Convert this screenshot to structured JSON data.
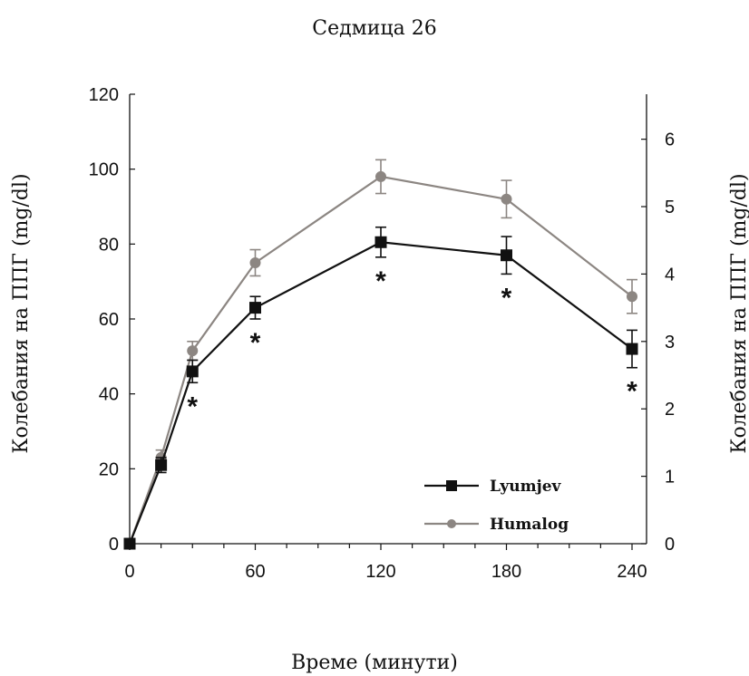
{
  "chart_data": {
    "type": "line",
    "title": "Седмица 26",
    "xlabel": "Време (минути)",
    "ylabel_left": "Колебания на ППГ (mg/dl)",
    "ylabel_right": "Колебания на ППГ (mg/dl)",
    "x": [
      0,
      15,
      30,
      60,
      120,
      180,
      240
    ],
    "x_ticks": [
      0,
      60,
      120,
      180,
      240
    ],
    "xlim": [
      0,
      240
    ],
    "ylim_left": [
      0,
      120
    ],
    "y_ticks_left": [
      0,
      20,
      40,
      60,
      80,
      100,
      120
    ],
    "ylim_right": [
      0,
      6.667
    ],
    "y_ticks_right": [
      0,
      1,
      2,
      3,
      4,
      5,
      6
    ],
    "series": [
      {
        "name": "Lyumjev",
        "marker": "square",
        "color": "#111111",
        "values": [
          0,
          21,
          46,
          63,
          80.5,
          77,
          52
        ],
        "errors": [
          0,
          2,
          3,
          3,
          4,
          5,
          5
        ]
      },
      {
        "name": "Humalog",
        "marker": "circle",
        "color": "#8c8682",
        "values": [
          0,
          23,
          51.5,
          75,
          98,
          92,
          66
        ],
        "errors": [
          0,
          2,
          2.5,
          3.5,
          4.5,
          5,
          4.5
        ]
      }
    ],
    "significance": {
      "symbol": "*",
      "x": [
        30,
        60,
        120,
        180,
        240
      ]
    },
    "legend": "bottom-right",
    "grid": false
  }
}
